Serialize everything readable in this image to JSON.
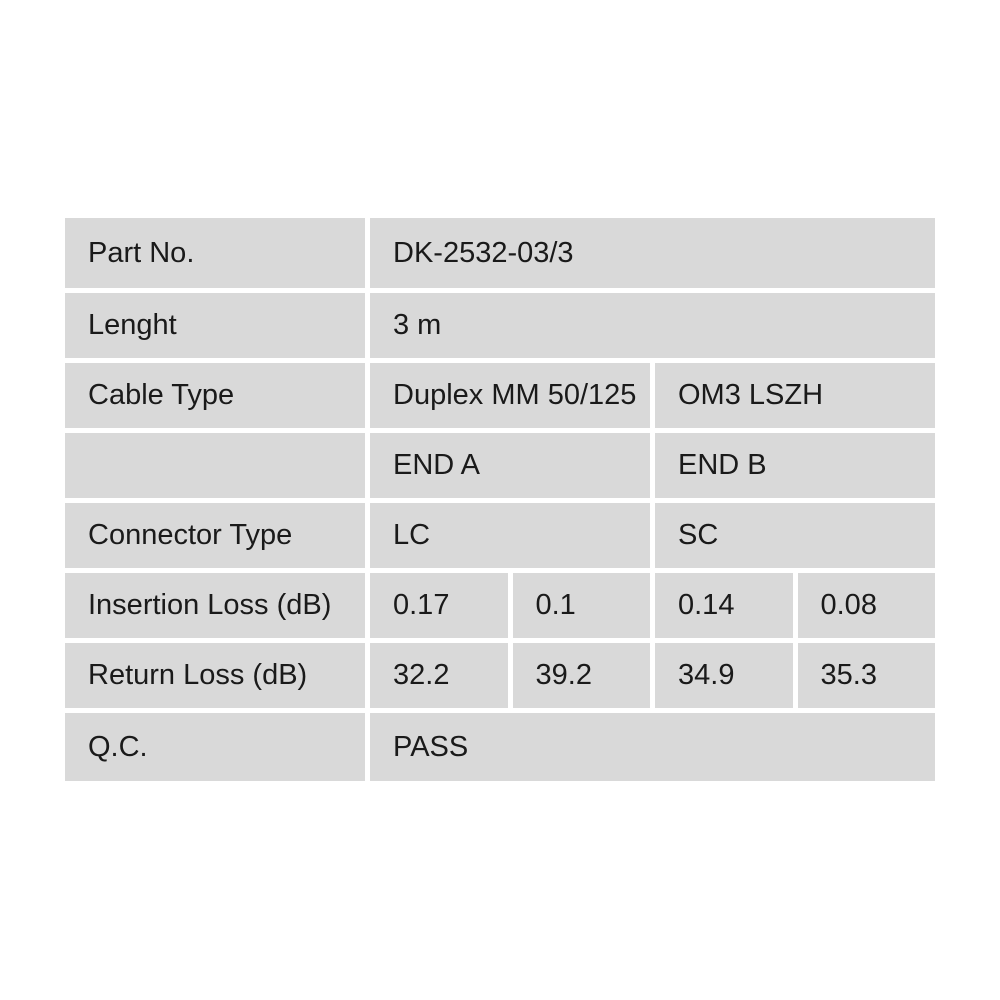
{
  "colors": {
    "page_bg": "#ffffff",
    "cell_bg": "#d9d9d9",
    "text": "#1a1a1a"
  },
  "spec_table": {
    "part_no": {
      "label": "Part No.",
      "value": "DK-2532-03/3"
    },
    "length": {
      "label": "Lenght",
      "value": "3 m"
    },
    "cable_type": {
      "label": "Cable Type",
      "value_a": "Duplex MM 50/125",
      "value_b": "OM3 LSZH"
    },
    "ends_header": {
      "label": "",
      "end_a": "END A",
      "end_b": "END B"
    },
    "connector_type": {
      "label": "Connector Type",
      "end_a": "LC",
      "end_b": "SC"
    },
    "insertion_loss": {
      "label": "Insertion Loss (dB)",
      "values": [
        "0.17",
        "0.1",
        "0.14",
        "0.08"
      ]
    },
    "return_loss": {
      "label": "Return Loss (dB)",
      "values": [
        "32.2",
        "39.2",
        "34.9",
        "35.3"
      ]
    },
    "qc": {
      "label": "Q.C.",
      "value": "PASS"
    }
  }
}
